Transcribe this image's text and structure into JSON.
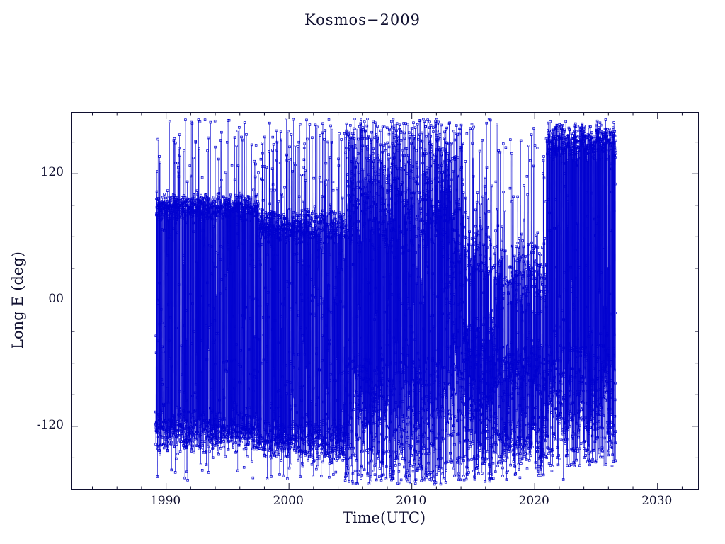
{
  "chart_data": {
    "type": "scatter",
    "title": "Kosmos−2009",
    "xlabel": "Time(UTC)",
    "ylabel": "Long E (deg)",
    "xlim": [
      1982.3,
      2033.3
    ],
    "ylim": [
      -180,
      178
    ],
    "x_ticks": [
      1990,
      2000,
      2010,
      2020,
      2030
    ],
    "x_minor_step": 2,
    "y_ticks": [
      -120,
      0,
      120
    ],
    "y_tick_labels": [
      "-120",
      "00",
      "120"
    ],
    "y_minor_step": 30,
    "grid": false,
    "legend": null,
    "marker": "open-square",
    "line_connected": true,
    "color": "#0000d0",
    "frame_color": "#101030",
    "background": "#ffffff",
    "time_range": [
      1989.15,
      2026.6
    ],
    "samples_per_year": 175,
    "segments": [
      {
        "t0": 1989.15,
        "t1": 1997.5,
        "bands": [
          {
            "c": 88,
            "s": 14,
            "w": 0.4
          },
          {
            "c": -124,
            "s": 24,
            "w": 0.38
          },
          {
            "c": 0,
            "s": 172,
            "w": 0.22,
            "u": 1
          }
        ]
      },
      {
        "t0": 1997.5,
        "t1": 2004.6,
        "bands": [
          {
            "c": 70,
            "s": 18,
            "w": 0.36
          },
          {
            "c": -134,
            "s": 22,
            "w": 0.36
          },
          {
            "c": 0,
            "s": 172,
            "w": 0.28,
            "u": 1
          }
        ]
      },
      {
        "t0": 2004.6,
        "t1": 2012.8,
        "bands": [
          {
            "c": 110,
            "s": 62,
            "w": 0.38,
            "u": 1
          },
          {
            "c": -115,
            "s": 60,
            "w": 0.36,
            "u": 1
          },
          {
            "c": 0,
            "s": 172,
            "w": 0.26,
            "u": 1
          }
        ]
      },
      {
        "t0": 2012.8,
        "t1": 2014.2,
        "bands": [
          {
            "c": 0,
            "s": 172,
            "w": 1.0,
            "u": 1
          }
        ]
      },
      {
        "t0": 2014.2,
        "t1": 2016.8,
        "bands": [
          {
            "c": -95,
            "s": 78,
            "w": 0.6,
            "u": 1
          },
          {
            "c": 45,
            "s": 32,
            "w": 0.18
          },
          {
            "c": 0,
            "s": 172,
            "w": 0.22,
            "u": 1
          }
        ]
      },
      {
        "t0": 2016.8,
        "t1": 2021.0,
        "bands": [
          {
            "c": 22,
            "s": 40,
            "w": 0.28
          },
          {
            "c": -70,
            "s": 34,
            "w": 0.28
          },
          {
            "c": -132,
            "s": 38,
            "w": 0.28
          },
          {
            "c": 0,
            "s": 172,
            "w": 0.16,
            "u": 1
          }
        ]
      },
      {
        "t0": 2021.0,
        "t1": 2026.6,
        "bands": [
          {
            "c": 151,
            "s": 21,
            "w": 0.4
          },
          {
            "c": -100,
            "s": 58,
            "w": 0.42,
            "u": 1
          },
          {
            "c": 0,
            "s": 172,
            "w": 0.18,
            "u": 1
          }
        ]
      }
    ]
  }
}
